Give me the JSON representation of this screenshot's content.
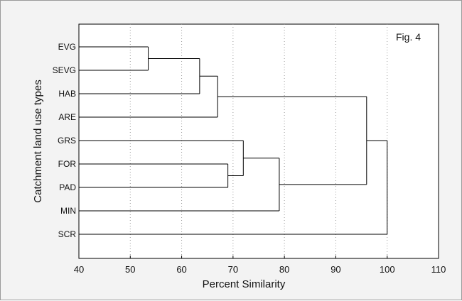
{
  "chart_data": {
    "type": "dendrogram",
    "title": "",
    "annotation": "Fig. 4",
    "xlabel": "Percent Similarity",
    "ylabel": "Catchment land use types",
    "xlim": [
      40,
      110
    ],
    "xticks": [
      40,
      50,
      60,
      70,
      80,
      90,
      100,
      110
    ],
    "leaves": [
      "EVG",
      "SEVG",
      "HAB",
      "ARE",
      "GRS",
      "FOR",
      "PAD",
      "MIN",
      "SCR"
    ],
    "merges": [
      {
        "id": "c1",
        "children": [
          "EVG",
          "SEVG"
        ],
        "height": 53.5
      },
      {
        "id": "c2",
        "children": [
          "c1",
          "HAB"
        ],
        "height": 63.5
      },
      {
        "id": "c3",
        "children": [
          "c2",
          "ARE"
        ],
        "height": 67
      },
      {
        "id": "c4",
        "children": [
          "FOR",
          "PAD"
        ],
        "height": 69
      },
      {
        "id": "c5",
        "children": [
          "GRS",
          "c4"
        ],
        "height": 72
      },
      {
        "id": "c6",
        "children": [
          "c5",
          "MIN"
        ],
        "height": 79
      },
      {
        "id": "c7",
        "children": [
          "c3",
          "c6"
        ],
        "height": 96
      },
      {
        "id": "c8",
        "children": [
          "c7",
          "SCR"
        ],
        "height": 100
      }
    ],
    "grid": {
      "vertical": true,
      "style": "dotted"
    }
  }
}
